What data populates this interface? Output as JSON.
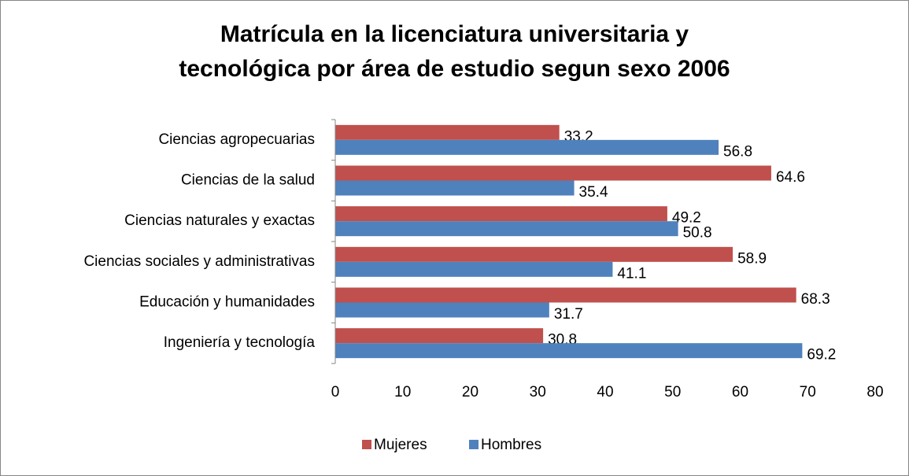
{
  "chart_data": {
    "type": "hbar",
    "title": "Matrícula en la licenciatura universitaria y tecnológica por área de estudio segun sexo 2006",
    "categories": [
      "Ciencias agropecuarias",
      "Ciencias de la salud",
      "Ciencias naturales y exactas",
      "Ciencias sociales y administrativas",
      "Educación y humanidades",
      "Ingeniería y tecnología"
    ],
    "series": [
      {
        "name": "Mujeres",
        "color": "#c0504d",
        "values": [
          33.2,
          64.6,
          49.2,
          58.9,
          68.3,
          30.8
        ]
      },
      {
        "name": "Hombres",
        "color": "#4f81bd",
        "values": [
          56.8,
          35.4,
          50.8,
          41.1,
          31.7,
          69.2
        ]
      }
    ],
    "xlim": [
      0,
      80
    ],
    "xticks": [
      0,
      10,
      20,
      30,
      40,
      50,
      60,
      70,
      80
    ],
    "legend": "bottom"
  }
}
